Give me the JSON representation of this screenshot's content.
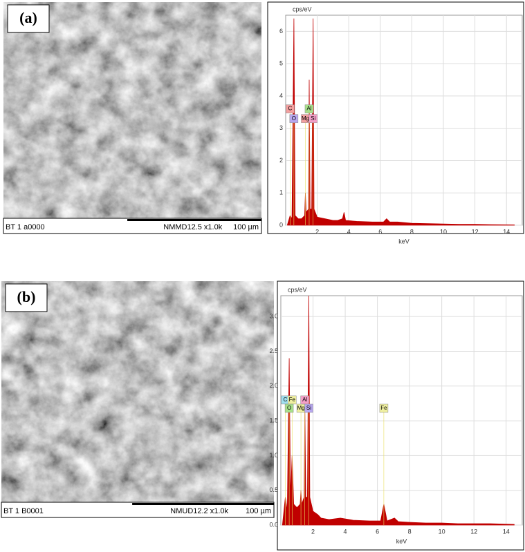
{
  "panels": [
    {
      "label": "(a)",
      "sem": {
        "id": "BT 1 a0000",
        "info": "NMMD12.5 x1.0k",
        "scale": "100 µm"
      }
    },
    {
      "label": "(b)",
      "sem": {
        "id": "BT 1 B0001",
        "info": "NMUD12.2 x1.0k",
        "scale": "100 µm"
      }
    }
  ],
  "chart_data": [
    {
      "type": "area",
      "x_label": "keV",
      "y_label": "cps/eV",
      "color": "#c00000",
      "grid": true,
      "xlim": [
        0,
        15
      ],
      "xticks": [
        2,
        4,
        6,
        8,
        10,
        12,
        14
      ],
      "ylim": [
        0,
        6.5
      ],
      "yticks": [
        0,
        1,
        2,
        3,
        4,
        5,
        6
      ],
      "x": [
        0.1,
        0.28,
        0.4,
        0.52,
        0.6,
        0.8,
        1.0,
        1.2,
        1.25,
        1.3,
        1.45,
        1.49,
        1.55,
        1.65,
        1.74,
        1.8,
        2.0,
        2.5,
        3.0,
        3.3,
        3.6,
        3.7,
        3.8,
        4.5,
        5.5,
        6.2,
        6.4,
        6.6,
        7.1,
        8,
        9,
        10,
        11,
        12,
        13,
        14.5
      ],
      "values": [
        0,
        0.3,
        0.2,
        6.4,
        0.3,
        0.2,
        0.2,
        0.3,
        1.0,
        0.4,
        0.5,
        4.5,
        0.5,
        0.5,
        6.4,
        0.5,
        0.25,
        0.2,
        0.15,
        0.15,
        0.2,
        0.4,
        0.15,
        0.12,
        0.1,
        0.1,
        0.2,
        0.1,
        0.1,
        0.06,
        0.05,
        0.04,
        0.03,
        0.03,
        0.02,
        0.01
      ],
      "annotations": [
        {
          "text": "C",
          "x": 0.28,
          "y": 3.6,
          "color": "#f4a0a0"
        },
        {
          "text": "O",
          "x": 0.52,
          "y": 3.3,
          "color": "#b8a8f0"
        },
        {
          "text": "Al",
          "x": 1.49,
          "y": 3.6,
          "color": "#a8e08a"
        },
        {
          "text": "Mg",
          "x": 1.25,
          "y": 3.3,
          "color": "#f4a0a0"
        },
        {
          "text": "Si",
          "x": 1.74,
          "y": 3.3,
          "color": "#f4a0c8"
        }
      ]
    },
    {
      "type": "area",
      "x_label": "keV",
      "y_label": "cps/eV",
      "color": "#c00000",
      "grid": true,
      "xlim": [
        0,
        15
      ],
      "xticks": [
        2,
        4,
        6,
        8,
        10,
        12,
        14
      ],
      "ylim": [
        0,
        3.3
      ],
      "yticks": [
        {
          "value": 0,
          "label": "0.0"
        },
        0.5,
        {
          "value": 1,
          "label": "1.0"
        },
        1.5,
        {
          "value": 2,
          "label": "2.0"
        },
        2.5,
        {
          "value": 3,
          "label": "3.0"
        }
      ],
      "x": [
        0.1,
        0.28,
        0.4,
        0.52,
        0.6,
        0.7,
        0.8,
        1.0,
        1.2,
        1.25,
        1.3,
        1.45,
        1.49,
        1.55,
        1.65,
        1.74,
        1.8,
        2.0,
        2.3,
        2.5,
        3.0,
        3.7,
        4.5,
        5.5,
        6.2,
        6.4,
        6.6,
        7.06,
        7.3,
        8,
        9,
        10,
        11,
        12,
        13,
        14.5
      ],
      "values": [
        0,
        0.4,
        0.2,
        2.4,
        0.4,
        1.0,
        0.3,
        0.25,
        0.3,
        0.5,
        0.3,
        0.4,
        1.7,
        0.4,
        0.4,
        3.3,
        0.4,
        0.2,
        0.15,
        0.1,
        0.08,
        0.1,
        0.07,
        0.06,
        0.06,
        0.3,
        0.06,
        0.1,
        0.05,
        0.04,
        0.03,
        0.03,
        0.02,
        0.02,
        0.02,
        0.01
      ],
      "annotations": [
        {
          "text": "C",
          "x": 0.28,
          "y": 1.8,
          "color": "#a0e0f0"
        },
        {
          "text": "Fe",
          "x": 0.7,
          "y": 1.8,
          "color": "#f0f0a0"
        },
        {
          "text": "O",
          "x": 0.52,
          "y": 1.68,
          "color": "#a8e08a"
        },
        {
          "text": "Mg",
          "x": 1.25,
          "y": 1.68,
          "color": "#f0f0a0"
        },
        {
          "text": "Al",
          "x": 1.49,
          "y": 1.8,
          "color": "#f4a0c8"
        },
        {
          "text": "Si",
          "x": 1.74,
          "y": 1.68,
          "color": "#b8a8f0"
        },
        {
          "text": "Fe",
          "x": 6.4,
          "y": 1.68,
          "color": "#f0f0a0"
        }
      ]
    }
  ]
}
